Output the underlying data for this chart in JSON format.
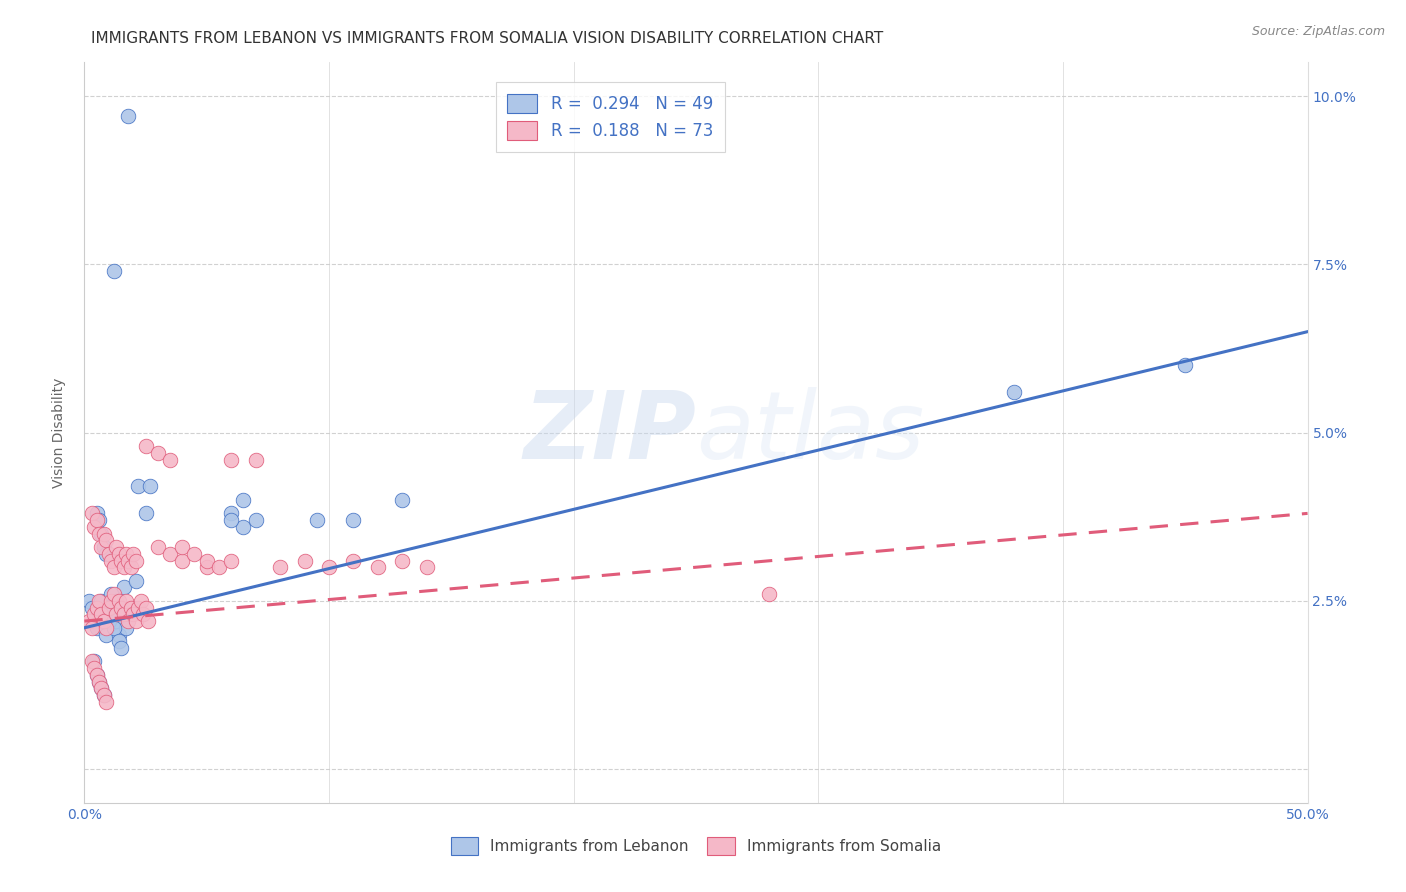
{
  "title": "IMMIGRANTS FROM LEBANON VS IMMIGRANTS FROM SOMALIA VISION DISABILITY CORRELATION CHART",
  "source": "Source: ZipAtlas.com",
  "ylabel": "Vision Disability",
  "watermark_zip": "ZIP",
  "watermark_atlas": "atlas",
  "xlim": [
    0.0,
    0.5
  ],
  "ylim": [
    -0.005,
    0.105
  ],
  "xticks": [
    0.0,
    0.1,
    0.2,
    0.3,
    0.4,
    0.5
  ],
  "yticks": [
    0.025,
    0.05,
    0.075,
    0.1
  ],
  "ytick_labels": [
    "2.5%",
    "5.0%",
    "7.5%",
    "10.0%"
  ],
  "xtick_labels": [
    "0.0%",
    "",
    "",
    "",
    "",
    "50.0%"
  ],
  "lebanon_R": 0.294,
  "lebanon_N": 49,
  "somalia_R": 0.188,
  "somalia_N": 73,
  "lebanon_color": "#aec6e8",
  "somalia_color": "#f5b8c8",
  "lebanon_line_color": "#4472C4",
  "somalia_line_color": "#E05C7A",
  "lebanon_line_intercept": 0.021,
  "lebanon_line_slope": 0.088,
  "somalia_line_intercept": 0.022,
  "somalia_line_slope": 0.032,
  "lebanon_x": [
    0.018,
    0.012,
    0.002,
    0.003,
    0.004,
    0.005,
    0.006,
    0.007,
    0.008,
    0.009,
    0.01,
    0.011,
    0.013,
    0.014,
    0.015,
    0.016,
    0.017,
    0.019,
    0.02,
    0.021,
    0.022,
    0.025,
    0.027,
    0.06,
    0.065,
    0.095,
    0.11,
    0.13,
    0.065,
    0.005,
    0.006,
    0.007,
    0.008,
    0.009,
    0.01,
    0.011,
    0.012,
    0.013,
    0.014,
    0.015,
    0.004,
    0.005,
    0.006,
    0.007,
    0.008,
    0.38,
    0.45,
    0.06,
    0.07
  ],
  "lebanon_y": [
    0.097,
    0.074,
    0.025,
    0.024,
    0.022,
    0.021,
    0.023,
    0.025,
    0.022,
    0.02,
    0.024,
    0.026,
    0.022,
    0.02,
    0.024,
    0.027,
    0.021,
    0.023,
    0.024,
    0.028,
    0.042,
    0.038,
    0.042,
    0.038,
    0.036,
    0.037,
    0.037,
    0.04,
    0.04,
    0.038,
    0.037,
    0.035,
    0.033,
    0.032,
    0.022,
    0.023,
    0.021,
    0.025,
    0.019,
    0.018,
    0.016,
    0.014,
    0.013,
    0.012,
    0.011,
    0.056,
    0.06,
    0.037,
    0.037
  ],
  "somalia_x": [
    0.002,
    0.003,
    0.004,
    0.005,
    0.006,
    0.007,
    0.008,
    0.009,
    0.01,
    0.011,
    0.012,
    0.013,
    0.014,
    0.015,
    0.016,
    0.017,
    0.018,
    0.019,
    0.02,
    0.021,
    0.022,
    0.023,
    0.024,
    0.025,
    0.026,
    0.003,
    0.004,
    0.005,
    0.006,
    0.007,
    0.008,
    0.009,
    0.01,
    0.011,
    0.012,
    0.013,
    0.014,
    0.015,
    0.016,
    0.017,
    0.018,
    0.019,
    0.02,
    0.021,
    0.03,
    0.035,
    0.04,
    0.05,
    0.06,
    0.07,
    0.08,
    0.09,
    0.1,
    0.11,
    0.12,
    0.13,
    0.14,
    0.025,
    0.03,
    0.035,
    0.04,
    0.045,
    0.05,
    0.055,
    0.06,
    0.28,
    0.003,
    0.004,
    0.005,
    0.006,
    0.007,
    0.008,
    0.009
  ],
  "somalia_y": [
    0.022,
    0.021,
    0.023,
    0.024,
    0.025,
    0.023,
    0.022,
    0.021,
    0.024,
    0.025,
    0.026,
    0.023,
    0.025,
    0.024,
    0.023,
    0.025,
    0.022,
    0.024,
    0.023,
    0.022,
    0.024,
    0.025,
    0.023,
    0.024,
    0.022,
    0.038,
    0.036,
    0.037,
    0.035,
    0.033,
    0.035,
    0.034,
    0.032,
    0.031,
    0.03,
    0.033,
    0.032,
    0.031,
    0.03,
    0.032,
    0.031,
    0.03,
    0.032,
    0.031,
    0.033,
    0.032,
    0.031,
    0.03,
    0.046,
    0.046,
    0.03,
    0.031,
    0.03,
    0.031,
    0.03,
    0.031,
    0.03,
    0.048,
    0.047,
    0.046,
    0.033,
    0.032,
    0.031,
    0.03,
    0.031,
    0.026,
    0.016,
    0.015,
    0.014,
    0.013,
    0.012,
    0.011,
    0.01
  ],
  "title_fontsize": 11,
  "source_fontsize": 9,
  "axis_label_fontsize": 10,
  "tick_fontsize": 10,
  "legend_fontsize": 12
}
